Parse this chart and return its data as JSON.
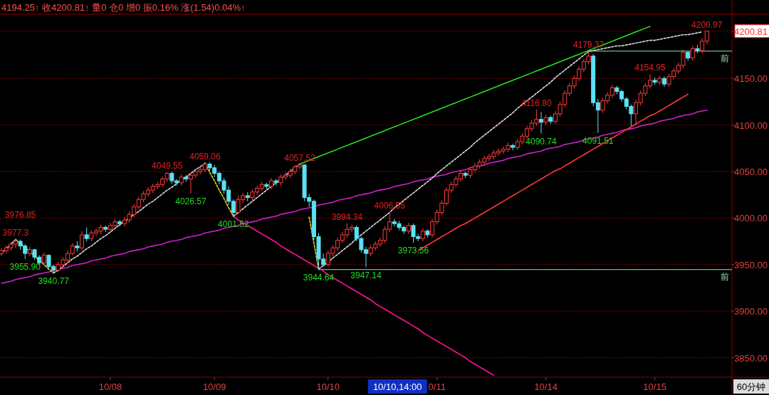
{
  "chart_data": {
    "type": "candlestick",
    "title": "4194.25↑ 收4200.81↑ 量0 仓0 增0 振0.16% 涨(1.54)0.04%↑",
    "ylim": [
      3829,
      4219
    ],
    "categories": [
      null,
      null,
      null,
      null,
      null,
      null,
      null,
      null,
      null,
      null,
      null,
      null,
      null,
      null,
      null,
      null,
      null,
      null,
      null,
      null,
      null,
      null,
      null,
      "10/08",
      null,
      null,
      null,
      null,
      null,
      null,
      null,
      null,
      null,
      null,
      null,
      null,
      null,
      null,
      null,
      null,
      null,
      null,
      null,
      null,
      null,
      "10/09",
      null,
      null,
      null,
      null,
      null,
      null,
      null,
      null,
      null,
      null,
      null,
      null,
      null,
      null,
      null,
      null,
      null,
      null,
      null,
      null,
      null,
      null,
      null,
      "10/10",
      null,
      null,
      null,
      null,
      null,
      null,
      null,
      null,
      null,
      null,
      null,
      null,
      null,
      null,
      null,
      null,
      null,
      null,
      null,
      null,
      null,
      null,
      "0/11",
      null,
      null,
      null,
      null,
      null,
      null,
      null,
      null,
      null,
      null,
      null,
      null,
      null,
      null,
      null,
      null,
      null,
      null,
      null,
      null,
      null,
      null,
      "10/14",
      null,
      null,
      null,
      null,
      null,
      null,
      null,
      null,
      null,
      null,
      null,
      null,
      null,
      null,
      null,
      null,
      null,
      null,
      null,
      null,
      null,
      null,
      "10/15",
      null,
      null,
      null,
      null,
      null,
      null,
      null,
      null,
      null,
      null,
      null
    ],
    "yticks": [
      {
        "value": 3850,
        "label": "3850.00"
      },
      {
        "value": 3900,
        "label": "3900.00"
      },
      {
        "value": 3950,
        "label": "3950.00"
      },
      {
        "value": 4000,
        "label": "4000.00"
      },
      {
        "value": 4050,
        "label": "4050.00"
      },
      {
        "value": 4100,
        "label": "4100.00"
      },
      {
        "value": 4150,
        "label": "4150.00"
      },
      {
        "value": 4200.81,
        "label": "4200.81"
      }
    ],
    "grid": "y",
    "ohlc": [
      [
        3962,
        3968,
        3959,
        3965
      ],
      [
        3965,
        3971,
        3962,
        3968
      ],
      [
        3968,
        3974,
        3965,
        3972
      ],
      [
        3972,
        3977.3,
        3968,
        3975
      ],
      [
        3975,
        3976.85,
        3966,
        3970
      ],
      [
        3970,
        3972,
        3955.9,
        3962
      ],
      [
        3962,
        3969,
        3959,
        3966
      ],
      [
        3966,
        3967,
        3955,
        3958
      ],
      [
        3958,
        3960,
        3949,
        3952
      ],
      [
        3952,
        3963,
        3950,
        3960
      ],
      [
        3960,
        3961,
        3945,
        3948
      ],
      [
        3948,
        3950,
        3940.77,
        3944
      ],
      [
        3944,
        3953,
        3942,
        3950
      ],
      [
        3950,
        3958,
        3947,
        3955
      ],
      [
        3955,
        3965,
        3952,
        3962
      ],
      [
        3962,
        3973,
        3960,
        3970
      ],
      [
        3970,
        3975,
        3964,
        3968
      ],
      [
        3968,
        3986,
        3966,
        3982
      ],
      [
        3982,
        3990,
        3975,
        3978
      ],
      [
        3978,
        3987,
        3975,
        3984
      ],
      [
        3984,
        3989,
        3981,
        3986
      ],
      [
        3986,
        3993,
        3983,
        3990
      ],
      [
        3990,
        3992,
        3985,
        3988
      ],
      [
        3988,
        3995,
        3985,
        3992
      ],
      [
        3992,
        3999,
        3989,
        3996
      ],
      [
        3996,
        3998,
        3991,
        3994
      ],
      [
        3994,
        4001,
        3991,
        3998
      ],
      [
        3998,
        4007,
        3995,
        4004
      ],
      [
        4004,
        4015,
        4001,
        4012
      ],
      [
        4012,
        4023,
        4009,
        4020
      ],
      [
        4020,
        4029,
        4017,
        4026
      ],
      [
        4026,
        4033,
        4023,
        4030
      ],
      [
        4030,
        4037,
        4027,
        4034
      ],
      [
        4034,
        4039,
        4031,
        4036
      ],
      [
        4036,
        4045,
        4033,
        4042
      ],
      [
        4042,
        4049.55,
        4039,
        4048
      ],
      [
        4048,
        4050,
        4037,
        4040
      ],
      [
        4040,
        4042,
        4035,
        4038
      ],
      [
        4038,
        4047,
        4035,
        4044
      ],
      [
        4044,
        4046,
        4039,
        4042
      ],
      [
        4042,
        4048,
        4026.57,
        4046
      ],
      [
        4046,
        4053,
        4043,
        4050
      ],
      [
        4050,
        4055,
        4047,
        4052
      ],
      [
        4052,
        4059.06,
        4049,
        4058
      ],
      [
        4058,
        4060,
        4051,
        4054
      ],
      [
        4054,
        4057,
        4044,
        4048
      ],
      [
        4048,
        4050,
        4036,
        4040
      ],
      [
        4040,
        4043,
        4026,
        4030
      ],
      [
        4030,
        4034,
        4014,
        4018
      ],
      [
        4018,
        4020,
        4001.52,
        4006
      ],
      [
        4006,
        4024,
        4004,
        4020
      ],
      [
        4020,
        4027,
        4016,
        4024
      ],
      [
        4024,
        4028,
        4018,
        4022
      ],
      [
        4022,
        4031,
        4019,
        4028
      ],
      [
        4028,
        4035,
        4025,
        4032
      ],
      [
        4032,
        4039,
        4029,
        4036
      ],
      [
        4036,
        4038,
        4031,
        4034
      ],
      [
        4034,
        4043,
        4031,
        4040
      ],
      [
        4040,
        4042,
        4035,
        4038
      ],
      [
        4038,
        4047,
        4035,
        4044
      ],
      [
        4044,
        4049,
        4041,
        4046
      ],
      [
        4046,
        4053,
        4043,
        4050
      ],
      [
        4050,
        4057,
        4047,
        4055
      ],
      [
        4055,
        4057.52,
        4052,
        4057
      ],
      [
        4057,
        4058,
        4018,
        4022
      ],
      [
        4022,
        4026,
        4012,
        4018
      ],
      [
        4018,
        4020,
        3976,
        3980
      ],
      [
        3980,
        3984,
        3944.64,
        3956
      ],
      [
        3956,
        3962,
        3948,
        3950
      ],
      [
        3950,
        3965,
        3948,
        3962
      ],
      [
        3962,
        3971,
        3959,
        3968
      ],
      [
        3968,
        3979,
        3965,
        3976
      ],
      [
        3976,
        3985,
        3973,
        3982
      ],
      [
        3982,
        3994.34,
        3979,
        3988
      ],
      [
        3988,
        3993,
        3985,
        3990
      ],
      [
        3990,
        3992,
        3975,
        3978
      ],
      [
        3978,
        3980,
        3963,
        3966
      ],
      [
        3966,
        3969,
        3947.14,
        3962
      ],
      [
        3962,
        3971,
        3959,
        3968
      ],
      [
        3968,
        3975,
        3965,
        3972
      ],
      [
        3972,
        3979,
        3969,
        3976
      ],
      [
        3976,
        3991,
        3973,
        3988
      ],
      [
        3988,
        4006.55,
        3985,
        3996
      ],
      [
        3996,
        3999,
        3991,
        3994
      ],
      [
        3994,
        3997,
        3987,
        3990
      ],
      [
        3990,
        3992,
        3983,
        3986
      ],
      [
        3986,
        3995,
        3983,
        3992
      ],
      [
        3992,
        3994,
        3973.56,
        3980
      ],
      [
        3980,
        3983,
        3975,
        3978
      ],
      [
        3978,
        3989,
        3975,
        3986
      ],
      [
        3986,
        3988,
        3979,
        3982
      ],
      [
        3982,
        3999,
        3979,
        3996
      ],
      [
        3996,
        4009,
        3993,
        4006
      ],
      [
        4006,
        4019,
        4003,
        4016
      ],
      [
        4016,
        4033,
        4013,
        4030
      ],
      [
        4030,
        4039,
        4027,
        4036
      ],
      [
        4036,
        4045,
        4033,
        4042
      ],
      [
        4042,
        4051,
        4039,
        4048
      ],
      [
        4048,
        4050,
        4043,
        4046
      ],
      [
        4046,
        4055,
        4043,
        4052
      ],
      [
        4052,
        4059,
        4049,
        4056
      ],
      [
        4056,
        4063,
        4053,
        4060
      ],
      [
        4060,
        4067,
        4057,
        4064
      ],
      [
        4064,
        4069,
        4061,
        4066
      ],
      [
        4066,
        4073,
        4063,
        4070
      ],
      [
        4070,
        4075,
        4067,
        4072
      ],
      [
        4072,
        4077,
        4069,
        4074
      ],
      [
        4074,
        4081,
        4071,
        4078
      ],
      [
        4078,
        4080,
        4073,
        4076
      ],
      [
        4076,
        4085,
        4073,
        4082
      ],
      [
        4082,
        4091,
        4079,
        4088
      ],
      [
        4088,
        4099,
        4085,
        4096
      ],
      [
        4096,
        4105,
        4093,
        4102
      ],
      [
        4102,
        4116.8,
        4099,
        4106
      ],
      [
        4106,
        4114,
        4090.74,
        4103
      ],
      [
        4103,
        4111,
        4100,
        4108
      ],
      [
        4108,
        4110,
        4101,
        4104
      ],
      [
        4104,
        4115,
        4101,
        4112
      ],
      [
        4112,
        4125,
        4109,
        4122
      ],
      [
        4122,
        4137,
        4119,
        4134
      ],
      [
        4134,
        4145,
        4131,
        4142
      ],
      [
        4142,
        4153,
        4139,
        4150
      ],
      [
        4150,
        4163,
        4147,
        4160
      ],
      [
        4160,
        4171,
        4157,
        4168
      ],
      [
        4168,
        4179.37,
        4165,
        4174
      ],
      [
        4174,
        4176,
        4120,
        4124
      ],
      [
        4124,
        4128,
        4091.51,
        4116
      ],
      [
        4116,
        4129,
        4113,
        4126
      ],
      [
        4126,
        4135,
        4123,
        4132
      ],
      [
        4132,
        4143,
        4129,
        4140
      ],
      [
        4140,
        4142,
        4133,
        4136
      ],
      [
        4136,
        4138,
        4125,
        4128
      ],
      [
        4128,
        4130,
        4117,
        4120
      ],
      [
        4120,
        4122,
        4099,
        4112
      ],
      [
        4112,
        4127,
        4100,
        4124
      ],
      [
        4124,
        4137,
        4121,
        4134
      ],
      [
        4134,
        4145,
        4131,
        4142
      ],
      [
        4142,
        4154.95,
        4139,
        4148
      ],
      [
        4148,
        4151,
        4143,
        4146
      ],
      [
        4146,
        4153,
        4143,
        4150
      ],
      [
        4150,
        4152,
        4141,
        4144
      ],
      [
        4144,
        4155,
        4141,
        4152
      ],
      [
        4152,
        4161,
        4149,
        4158
      ],
      [
        4158,
        4167,
        4155,
        4164
      ],
      [
        4164,
        4181,
        4161,
        4178
      ],
      [
        4178,
        4180,
        4169,
        4172
      ],
      [
        4172,
        4185,
        4169,
        4182
      ],
      [
        4182,
        4186,
        4177,
        4180
      ],
      [
        4180,
        4193,
        4177,
        4190
      ],
      [
        4190,
        4200.97,
        4187,
        4200.81
      ]
    ],
    "colors": [
      "#ff3c3c",
      "#ff3c3c",
      "#ff3c3c",
      "#ff3c3c",
      "#5ce1f2",
      "#5ce1f2",
      "#ff3c3c",
      "#5ce1f2",
      "#5ce1f2",
      "#ff3c3c",
      "#5ce1f2",
      "#5ce1f2",
      "#ff3c3c",
      "#ff3c3c",
      "#ff3c3c",
      "#ff3c3c",
      "#5ce1f2",
      "#ff3c3c",
      "#5ce1f2",
      "#ff3c3c",
      "#ff3c3c",
      "#ff3c3c",
      "#5ce1f2",
      "#ff3c3c",
      "#ff3c3c",
      "#5ce1f2",
      "#ff3c3c",
      "#ff3c3c",
      "#ff3c3c",
      "#ff3c3c",
      "#ff3c3c",
      "#ff3c3c",
      "#ff3c3c",
      "#ff3c3c",
      "#ff3c3c",
      "#ff3c3c",
      "#5ce1f2",
      "#5ce1f2",
      "#ff3c3c",
      "#5ce1f2",
      "#ff3c3c",
      "#ff3c3c",
      "#ff3c3c",
      "#ff3c3c",
      "#5ce1f2",
      "#5ce1f2",
      "#5ce1f2",
      "#5ce1f2",
      "#5ce1f2",
      "#5ce1f2",
      "#ff3c3c",
      "#ff3c3c",
      "#5ce1f2",
      "#ff3c3c",
      "#ff3c3c",
      "#ff3c3c",
      "#5ce1f2",
      "#ff3c3c",
      "#5ce1f2",
      "#ff3c3c",
      "#ff3c3c",
      "#ff3c3c",
      "#ff3c3c",
      "#ff3c3c",
      "#5ce1f2",
      "#5ce1f2",
      "#5ce1f2",
      "#5ce1f2",
      "#5ce1f2",
      "#ff3c3c",
      "#ff3c3c",
      "#ff3c3c",
      "#ff3c3c",
      "#ff3c3c",
      "#ff3c3c",
      "#5ce1f2",
      "#5ce1f2",
      "#5ce1f2",
      "#ff3c3c",
      "#ff3c3c",
      "#ff3c3c",
      "#ff3c3c",
      "#ff3c3c",
      "#5ce1f2",
      "#5ce1f2",
      "#5ce1f2",
      "#ff3c3c",
      "#5ce1f2",
      "#5ce1f2",
      "#ff3c3c",
      "#5ce1f2",
      "#ff3c3c",
      "#ff3c3c",
      "#ff3c3c",
      "#ff3c3c",
      "#ff3c3c",
      "#ff3c3c",
      "#ff3c3c",
      "#5ce1f2",
      "#ff3c3c",
      "#ff3c3c",
      "#ff3c3c",
      "#ff3c3c",
      "#ff3c3c",
      "#ff3c3c",
      "#ff3c3c",
      "#ff3c3c",
      "#ff3c3c",
      "#5ce1f2",
      "#ff3c3c",
      "#ff3c3c",
      "#ff3c3c",
      "#ff3c3c",
      "#ff3c3c",
      "#5ce1f2",
      "#ff3c3c",
      "#5ce1f2",
      "#ff3c3c",
      "#ff3c3c",
      "#ff3c3c",
      "#ff3c3c",
      "#ff3c3c",
      "#ff3c3c",
      "#ff3c3c",
      "#ff3c3c",
      "#5ce1f2",
      "#5ce1f2",
      "#ff3c3c",
      "#ff3c3c",
      "#ff3c3c",
      "#5ce1f2",
      "#5ce1f2",
      "#5ce1f2",
      "#5ce1f2",
      "#ff3c3c",
      "#ff3c3c",
      "#ff3c3c",
      "#ff3c3c",
      "#5ce1f2",
      "#ff3c3c",
      "#5ce1f2",
      "#ff3c3c",
      "#ff3c3c",
      "#ff3c3c",
      "#ff3c3c",
      "#5ce1f2",
      "#ff3c3c",
      "#5ce1f2",
      "#ff3c3c",
      "#ff3c3c"
    ],
    "series": [
      {
        "type": "line",
        "color": "#22e022",
        "values": [
          null,
          null,
          null,
          null,
          null,
          null,
          null,
          null,
          null,
          null,
          null,
          null,
          null,
          null,
          null,
          null,
          null,
          null,
          null,
          null,
          null,
          null,
          null,
          null,
          null,
          null,
          null,
          null,
          null,
          null,
          null,
          null,
          null,
          null,
          null,
          null,
          null,
          null,
          null,
          null,
          null,
          null,
          null,
          null,
          null,
          null,
          null,
          null,
          null,
          null,
          null,
          null,
          null,
          null,
          null,
          null,
          null,
          null,
          null,
          null,
          null,
          null,
          null,
          4058,
          4060,
          4062,
          4064,
          4066,
          4068,
          4070,
          4072,
          4074,
          4076,
          4078,
          4080,
          4082,
          4084,
          4086,
          4088,
          4090,
          4092,
          4094,
          4096,
          4098,
          4100,
          4102,
          4104,
          4106,
          4108,
          4110,
          4112,
          4114,
          4116,
          4118,
          4120,
          4122,
          4124,
          4126,
          4128,
          4130,
          4132,
          4134,
          4136,
          4138,
          4140,
          4142,
          4144,
          4146,
          4148,
          4150,
          4152,
          4154,
          4156,
          4158,
          4160,
          4162,
          4164,
          4166,
          4168,
          4170,
          4172,
          4174,
          4176,
          4178,
          4180,
          4182,
          4184,
          4186,
          4188,
          4190,
          4192,
          4194,
          4196,
          4198,
          4200,
          4202,
          4204,
          4206,
          null,
          null,
          null,
          null,
          null,
          null,
          null,
          null,
          null,
          null,
          null,
          null
        ]
      },
      {
        "type": "line",
        "color": "#cc22cc",
        "values": [
          3930,
          3931,
          3932,
          3934,
          3935,
          3936,
          3937,
          3939,
          3940,
          3941,
          3942,
          3944,
          3945,
          3946,
          3947,
          3949,
          3950,
          3951,
          3952,
          3954,
          3955,
          3956,
          3957,
          3959,
          3960,
          3961,
          3962,
          3964,
          3965,
          3966,
          3967,
          3969,
          3970,
          3971,
          3972,
          3974,
          3975,
          3976,
          3977,
          3979,
          3980,
          3981,
          3982,
          3984,
          3985,
          3986,
          3987,
          3989,
          3990,
          3991,
          3992,
          3994,
          3995,
          3996,
          3997,
          3999,
          4000,
          4001,
          4002,
          4004,
          4005,
          4006,
          4007,
          4009,
          4010,
          4011,
          4012,
          4014,
          4015,
          4016,
          4017,
          4019,
          4020,
          4021,
          4022,
          4024,
          4025,
          4026,
          4027,
          4029,
          4030,
          4031,
          4032,
          4034,
          4035,
          4036,
          4037,
          4039,
          4040,
          4041,
          4042,
          4044,
          4045,
          4046,
          4047,
          4049,
          4050,
          4051,
          4052,
          4054,
          4055,
          4056,
          4057,
          4059,
          4060,
          4061,
          4062,
          4064,
          4065,
          4066,
          4067,
          4069,
          4070,
          4071,
          4072,
          4074,
          4075,
          4076,
          4077,
          4079,
          4080,
          4081,
          4082,
          4084,
          4085,
          4086,
          4087,
          4089,
          4090,
          4091,
          4092,
          4094,
          4095,
          4096,
          4097,
          4099,
          4100,
          4101,
          4102,
          4104,
          4105,
          4106,
          4107,
          4109,
          4110,
          4111,
          4112,
          4114,
          4115,
          4116
        ]
      },
      {
        "type": "line",
        "color": "#ff1493",
        "values": [
          null,
          null,
          null,
          null,
          null,
          null,
          null,
          null,
          null,
          null,
          null,
          null,
          null,
          null,
          null,
          null,
          null,
          null,
          null,
          null,
          null,
          null,
          null,
          null,
          null,
          null,
          null,
          null,
          null,
          null,
          null,
          null,
          null,
          null,
          null,
          null,
          null,
          null,
          null,
          null,
          null,
          null,
          null,
          null,
          null,
          null,
          null,
          null,
          null,
          4002,
          3998,
          3995,
          3992,
          3989,
          3986,
          3983,
          3980,
          3977,
          3974,
          3970,
          3967,
          3964,
          3961,
          3958,
          3955,
          3952,
          3949,
          3946,
          3943,
          3939,
          3936,
          3933,
          3930,
          3927,
          3924,
          3921,
          3918,
          3915,
          3912,
          3908,
          3905,
          3902,
          3899,
          3896,
          3893,
          3890,
          3887,
          3884,
          3881,
          3877,
          3874,
          3871,
          3868,
          3865,
          3862,
          3859,
          3856,
          3853,
          3850,
          3846,
          3843,
          3840,
          3837,
          3834,
          3831,
          null,
          null,
          null,
          null,
          null,
          null,
          null,
          null,
          null,
          null,
          null,
          null,
          null,
          null,
          null,
          null,
          null,
          null,
          null,
          null,
          null,
          null,
          null,
          null,
          null,
          null,
          null,
          null,
          null,
          null,
          null,
          null,
          null,
          null,
          null,
          null,
          null,
          null,
          null,
          null,
          null,
          null,
          null,
          null,
          null
        ]
      },
      {
        "type": "line",
        "color": "#ff3838",
        "values": [
          null,
          null,
          null,
          null,
          null,
          null,
          null,
          null,
          null,
          null,
          null,
          null,
          null,
          null,
          null,
          null,
          null,
          null,
          null,
          null,
          null,
          null,
          null,
          null,
          null,
          null,
          null,
          null,
          null,
          null,
          null,
          null,
          null,
          null,
          null,
          null,
          null,
          null,
          null,
          null,
          null,
          null,
          null,
          null,
          null,
          null,
          null,
          null,
          null,
          null,
          null,
          null,
          null,
          null,
          null,
          null,
          null,
          null,
          null,
          null,
          null,
          null,
          null,
          null,
          null,
          null,
          null,
          null,
          null,
          null,
          null,
          null,
          null,
          null,
          null,
          null,
          null,
          null,
          null,
          null,
          null,
          null,
          null,
          null,
          null,
          null,
          null,
          null,
          3965,
          3968,
          3971,
          3974,
          3977,
          3980,
          3983,
          3986,
          3989,
          3992,
          3994,
          3997,
          4000,
          4003,
          4006,
          4009,
          4012,
          4015,
          4018,
          4021,
          4024,
          4027,
          4030,
          4033,
          4036,
          4039,
          4042,
          4045,
          4048,
          4051,
          4053,
          4056,
          4059,
          4062,
          4065,
          4068,
          4071,
          4074,
          4077,
          4080,
          4083,
          4086,
          4089,
          4092,
          4095,
          4098,
          4101,
          4104,
          4107,
          4110,
          4112,
          4115,
          4118,
          4121,
          4124,
          4127,
          4130,
          4133,
          null,
          null,
          null,
          null
        ]
      },
      {
        "type": "line",
        "color": "#dddddd",
        "line_style": "dashed",
        "values": [
          3962,
          3967,
          3972,
          3977,
          null,
          null,
          null,
          null,
          null,
          null,
          null,
          3941,
          3944,
          3948,
          3952,
          3956,
          3959,
          3963,
          3967,
          3970,
          3974,
          3978,
          3981,
          3985,
          3989,
          3993,
          3996,
          4000,
          4004,
          4007,
          4011,
          4015,
          4018,
          4022,
          4026,
          4030,
          4033,
          4037,
          4041,
          4044,
          4048,
          4052,
          4055,
          4059,
          null,
          null,
          null,
          null,
          null,
          4002,
          4006,
          4010,
          4014,
          4018,
          4022,
          4026,
          4030,
          4034,
          4038,
          4042,
          4046,
          4050,
          4054,
          4058,
          null,
          null,
          null,
          3945,
          3949,
          3953,
          3957,
          3961,
          3965,
          3969,
          3973,
          3978,
          3982,
          3986,
          3990,
          3994,
          3998,
          4002,
          4006,
          4011,
          4015,
          4019,
          4023,
          4027,
          4031,
          4035,
          4039,
          4043,
          4048,
          4052,
          4056,
          4060,
          4064,
          4068,
          4072,
          4076,
          4081,
          4085,
          4089,
          4093,
          4097,
          4101,
          4105,
          4109,
          4113,
          4118,
          4122,
          4126,
          4130,
          4134,
          4138,
          4142,
          4146,
          4151,
          4155,
          4159,
          4163,
          4167,
          4171,
          4175,
          4179,
          4180,
          4181,
          4182,
          4183,
          4184,
          4185,
          4185,
          4186,
          4187,
          4188,
          4189,
          4190,
          4191,
          4191,
          4192,
          4193,
          4194,
          4195,
          4196,
          4197,
          4197,
          4198,
          4199,
          4200,
          null
        ]
      },
      {
        "type": "line",
        "color": "#e6d21e",
        "line_style": "dashed",
        "values": [
          null,
          null,
          null,
          3977,
          3973,
          3968,
          3964,
          3959,
          3954,
          3950,
          3945,
          3941,
          null,
          null,
          null,
          null,
          null,
          null,
          null,
          null,
          null,
          null,
          null,
          null,
          null,
          null,
          null,
          null,
          null,
          null,
          null,
          null,
          null,
          null,
          null,
          null,
          null,
          null,
          null,
          null,
          null,
          null,
          null,
          4059,
          4049,
          4040,
          4030,
          4021,
          4011,
          4002,
          null,
          null,
          null,
          null,
          null,
          null,
          null,
          null,
          null,
          null,
          null,
          null,
          null,
          null,
          null,
          4001,
          3973,
          3945,
          null,
          null,
          null,
          null,
          null,
          null,
          null,
          null,
          null,
          null,
          null,
          null,
          null,
          null,
          null,
          null,
          null,
          null,
          null,
          null,
          null,
          null,
          null,
          null,
          null,
          null,
          null,
          null,
          null,
          null,
          null,
          null,
          null,
          null,
          null,
          null,
          null,
          null,
          null,
          null,
          null,
          null,
          null,
          null,
          null,
          null,
          null,
          null,
          null,
          null,
          null,
          null,
          null,
          null,
          null,
          null,
          null,
          null,
          null,
          null,
          null,
          null,
          null,
          null,
          null,
          null,
          null,
          null,
          null,
          null,
          null,
          null,
          null,
          null,
          null,
          null,
          null,
          null,
          null,
          null,
          null,
          null
        ]
      }
    ],
    "ref_lines": [
      {
        "axis": "y",
        "value": 4179.37,
        "label": "前",
        "color": "#9fe0c0"
      },
      {
        "axis": "y",
        "value": 3944.64,
        "label": "前",
        "color": "#9fe0c0"
      }
    ],
    "annotations": [
      {
        "text": "3977.3",
        "y": 3977.3
      },
      {
        "text": "3976.85",
        "y": 3976.85
      },
      {
        "text": "3955.90",
        "y": 3955.9
      },
      {
        "text": "3940.77",
        "y": 3940.77
      },
      {
        "text": "4049.55",
        "y": 4049.55
      },
      {
        "text": "4026.57",
        "y": 4026.57
      },
      {
        "text": "4059.06",
        "y": 4059.06
      },
      {
        "text": "4001.52",
        "y": 4001.52
      },
      {
        "text": "4057.52",
        "y": 4057.52
      },
      {
        "text": "3944.64",
        "y": 3944.64
      },
      {
        "text": "3994.34",
        "y": 3994.34
      },
      {
        "text": "3947.14",
        "y": 3947.14
      },
      {
        "text": "4006.55",
        "y": 4006.55
      },
      {
        "text": "3973.56",
        "y": 3973.56
      },
      {
        "text": "4116.80",
        "y": 4116.8
      },
      {
        "text": "4090.74",
        "y": 4090.74
      },
      {
        "text": "4179.37",
        "y": 4179.37
      },
      {
        "text": "4091.51",
        "y": 4091.51
      },
      {
        "text": "4154.95",
        "y": 4154.95
      },
      {
        "text": "4200.97",
        "y": 4200.97
      },
      "10/10,14:00",
      "60分钟"
    ]
  }
}
